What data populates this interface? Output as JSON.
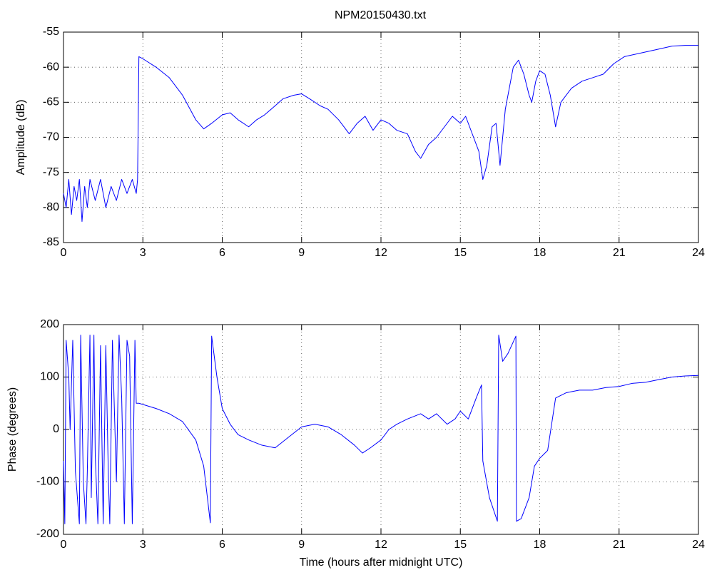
{
  "chart_data": [
    {
      "type": "line",
      "title": "NPM20150430.txt",
      "ylabel": "Amplitude (dB)",
      "color": "#0000ff",
      "grid": true,
      "xlim": [
        0,
        24
      ],
      "xticks": [
        0,
        3,
        6,
        9,
        12,
        15,
        18,
        21,
        24
      ],
      "ylim": [
        -85,
        -55
      ],
      "yticks": [
        -85,
        -80,
        -75,
        -70,
        -65,
        -60,
        -55
      ],
      "x": [
        0,
        0.1,
        0.2,
        0.3,
        0.4,
        0.5,
        0.6,
        0.7,
        0.8,
        0.9,
        1.0,
        1.2,
        1.4,
        1.6,
        1.8,
        2.0,
        2.2,
        2.4,
        2.6,
        2.75,
        2.8,
        2.85,
        3.0,
        3.5,
        4,
        4.5,
        5,
        5.3,
        5.6,
        6,
        6.3,
        6.6,
        7,
        7.3,
        7.6,
        8,
        8.3,
        8.7,
        9,
        9.3,
        9.7,
        10,
        10.4,
        10.8,
        11.1,
        11.4,
        11.7,
        12,
        12.3,
        12.6,
        13,
        13.3,
        13.5,
        13.8,
        14.1,
        14.4,
        14.7,
        15,
        15.2,
        15.5,
        15.7,
        15.85,
        16.0,
        16.2,
        16.35,
        16.5,
        16.7,
        17.0,
        17.2,
        17.4,
        17.6,
        17.7,
        17.85,
        18.0,
        18.2,
        18.4,
        18.6,
        18.8,
        19.2,
        19.6,
        20,
        20.4,
        20.8,
        21.2,
        21.8,
        22.4,
        23,
        23.5,
        24
      ],
      "values": [
        -78,
        -80,
        -76,
        -81,
        -77,
        -79,
        -76,
        -82,
        -77,
        -80,
        -76,
        -79,
        -76,
        -80,
        -77,
        -79,
        -76,
        -78,
        -76,
        -78,
        -76,
        -58.5,
        -58.8,
        -60,
        -61.5,
        -64,
        -67.5,
        -68.8,
        -68,
        -66.8,
        -66.5,
        -67.5,
        -68.5,
        -67.5,
        -66.8,
        -65.5,
        -64.5,
        -64,
        -63.8,
        -64.5,
        -65.5,
        -66,
        -67.5,
        -69.5,
        -68,
        -67,
        -69,
        -67.5,
        -68,
        -69,
        -69.5,
        -72,
        -73,
        -71,
        -70,
        -68.5,
        -67,
        -68,
        -67,
        -70,
        -72,
        -76,
        -74,
        -68.5,
        -68,
        -74,
        -66,
        -60,
        -59,
        -61,
        -64,
        -65,
        -62,
        -60.5,
        -61,
        -64,
        -68.5,
        -65,
        -63,
        -62,
        -61.5,
        -61,
        -59.5,
        -58.5,
        -58,
        -57.5,
        -57,
        -56.9,
        -56.9
      ]
    },
    {
      "type": "line",
      "ylabel": "Phase (degrees)",
      "xlabel": "Time (hours after midnight UTC)",
      "color": "#0000ff",
      "grid": true,
      "xlim": [
        0,
        24
      ],
      "xticks": [
        0,
        3,
        6,
        9,
        12,
        15,
        18,
        21,
        24
      ],
      "ylim": [
        -200,
        200
      ],
      "yticks": [
        -200,
        -100,
        0,
        100,
        200
      ],
      "x": [
        0,
        0.05,
        0.1,
        0.2,
        0.25,
        0.35,
        0.45,
        0.6,
        0.65,
        0.75,
        0.85,
        0.9,
        1.0,
        1.05,
        1.15,
        1.2,
        1.3,
        1.4,
        1.5,
        1.6,
        1.7,
        1.75,
        1.85,
        2.0,
        2.1,
        2.2,
        2.3,
        2.4,
        2.5,
        2.6,
        2.7,
        2.75,
        2.85,
        3.5,
        4,
        4.5,
        5,
        5.3,
        5.55,
        5.6,
        5.8,
        6,
        6.3,
        6.6,
        7,
        7.5,
        8,
        8.5,
        9,
        9.5,
        10,
        10.5,
        11,
        11.3,
        11.6,
        12,
        12.3,
        12.6,
        13,
        13.5,
        13.8,
        14.1,
        14.5,
        14.8,
        15,
        15.3,
        15.6,
        15.8,
        15.85,
        16.1,
        16.4,
        16.45,
        16.6,
        16.8,
        17.1,
        17.12,
        17.3,
        17.6,
        17.8,
        18,
        18.3,
        18.6,
        19,
        19.5,
        20,
        20.5,
        21,
        21.5,
        22,
        22.5,
        23,
        23.5,
        24
      ],
      "values": [
        -60,
        -180,
        170,
        100,
        0,
        170,
        -80,
        -180,
        180,
        -100,
        -180,
        -80,
        180,
        -130,
        180,
        -50,
        -180,
        160,
        -180,
        160,
        -100,
        -180,
        170,
        -100,
        180,
        60,
        -180,
        170,
        140,
        -180,
        170,
        50,
        50,
        40,
        30,
        15,
        -20,
        -70,
        -178,
        178,
        100,
        40,
        10,
        -10,
        -20,
        -30,
        -35,
        -15,
        5,
        10,
        5,
        -10,
        -30,
        -45,
        -35,
        -20,
        0,
        10,
        20,
        30,
        20,
        30,
        10,
        20,
        35,
        20,
        60,
        85,
        -60,
        -130,
        -175,
        180,
        130,
        145,
        178,
        -175,
        -170,
        -130,
        -70,
        -55,
        -40,
        60,
        70,
        75,
        75,
        80,
        82,
        88,
        90,
        95,
        100,
        102,
        103
      ]
    }
  ]
}
